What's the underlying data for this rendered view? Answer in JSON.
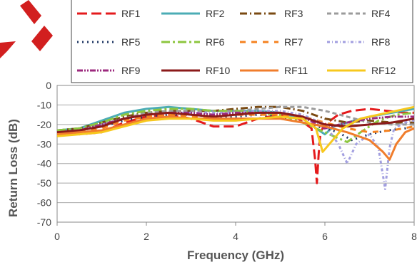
{
  "chart_data": {
    "type": "line",
    "title": "",
    "xlabel": "Frequency (GHz)",
    "ylabel": "Return Loss (dB)",
    "xlim": [
      0,
      8
    ],
    "ylim": [
      -70,
      0
    ],
    "xticks": [
      "0",
      "2",
      "4",
      "6",
      "8"
    ],
    "yticks": [
      "0",
      "-10",
      "-20",
      "-30",
      "-40",
      "-50",
      "-60",
      "-70"
    ],
    "grid": "horizontal",
    "legend_position": "top",
    "series": [
      {
        "name": "RF1",
        "color": "#e41a1c",
        "dash": "14,6",
        "width": 3,
        "x": [
          0,
          0.5,
          1.0,
          1.5,
          2.0,
          2.5,
          3.0,
          3.5,
          4.0,
          4.5,
          5.0,
          5.4,
          5.7,
          5.78,
          5.82,
          5.86,
          5.9,
          6.0,
          6.3,
          6.6,
          7.0,
          7.4,
          7.8,
          8.0
        ],
        "y": [
          -24,
          -25,
          -24,
          -19,
          -16,
          -15,
          -17,
          -21,
          -21,
          -17,
          -15,
          -17,
          -22,
          -38,
          -50,
          -35,
          -24,
          -20,
          -15,
          -13,
          -12,
          -13,
          -14,
          -14
        ]
      },
      {
        "name": "RF2",
        "color": "#4bacb5",
        "dash": "",
        "width": 3,
        "x": [
          0,
          0.5,
          1.0,
          1.5,
          2.0,
          2.5,
          3.0,
          3.5,
          4.0,
          4.5,
          5.0,
          5.5,
          5.8,
          6.0,
          6.2,
          6.5,
          7.0,
          7.5,
          8.0
        ],
        "y": [
          -23,
          -22,
          -18,
          -14,
          -12,
          -11,
          -12,
          -13,
          -13,
          -13,
          -14,
          -17,
          -22,
          -25,
          -21,
          -19,
          -16,
          -14,
          -12
        ]
      },
      {
        "name": "RF3",
        "color": "#7a4a12",
        "dash": "10,4,2,4",
        "width": 3,
        "x": [
          0,
          0.5,
          1.0,
          1.5,
          2.0,
          2.5,
          3.0,
          3.5,
          4.0,
          4.5,
          5.0,
          5.5,
          6.0,
          6.5,
          7.0,
          7.5,
          8.0
        ],
        "y": [
          -23,
          -22,
          -19,
          -16,
          -14,
          -13,
          -13,
          -13,
          -12,
          -11,
          -11,
          -13,
          -17,
          -19,
          -18,
          -19,
          -19
        ]
      },
      {
        "name": "RF4",
        "color": "#9b9b9b",
        "dash": "6,4",
        "width": 3,
        "x": [
          0,
          0.5,
          1.0,
          1.5,
          2.0,
          2.5,
          3.0,
          3.5,
          4.0,
          4.5,
          5.0,
          5.5,
          6.0,
          6.5,
          7.0,
          7.5,
          8.0
        ],
        "y": [
          -24,
          -23,
          -20,
          -17,
          -14,
          -13,
          -13,
          -13,
          -13,
          -12,
          -11,
          -11,
          -13,
          -16,
          -19,
          -20,
          -20
        ]
      },
      {
        "name": "RF5",
        "color": "#203864",
        "dash": "2,5",
        "width": 3,
        "x": [
          0,
          0.5,
          1.0,
          1.5,
          2.0,
          2.5,
          3.0,
          3.5,
          4.0,
          4.5,
          5.0,
          5.5,
          6.0,
          6.3,
          6.6,
          7.0,
          7.4,
          7.8,
          8.0
        ],
        "y": [
          -24,
          -23,
          -21,
          -18,
          -16,
          -15,
          -15,
          -16,
          -16,
          -15,
          -16,
          -19,
          -22,
          -24,
          -28,
          -25,
          -23,
          -22,
          -21
        ]
      },
      {
        "name": "RF6",
        "color": "#8dc63f",
        "dash": "12,4,3,4",
        "width": 3,
        "x": [
          0,
          0.5,
          1.0,
          1.5,
          2.0,
          2.5,
          3.0,
          3.5,
          4.0,
          4.5,
          5.0,
          5.5,
          6.0,
          6.3,
          6.5,
          6.8,
          7.2,
          7.6,
          8.0
        ],
        "y": [
          -23,
          -22,
          -19,
          -15,
          -13,
          -12,
          -12,
          -13,
          -13,
          -14,
          -15,
          -19,
          -24,
          -27,
          -29,
          -24,
          -18,
          -15,
          -14
        ]
      },
      {
        "name": "RF7",
        "color": "#f58220",
        "dash": "8,8",
        "width": 3,
        "x": [
          0,
          0.5,
          1.0,
          1.5,
          2.0,
          2.5,
          3.0,
          3.5,
          4.0,
          4.5,
          5.0,
          5.5,
          6.0,
          6.5,
          7.0,
          7.5,
          8.0
        ],
        "y": [
          -25,
          -24,
          -22,
          -18,
          -16,
          -15,
          -16,
          -16,
          -15,
          -15,
          -15,
          -16,
          -19,
          -22,
          -24,
          -23,
          -21
        ]
      },
      {
        "name": "RF8",
        "color": "#a29fe0",
        "dash": "4,3,1,3",
        "width": 3,
        "x": [
          0,
          0.5,
          1.0,
          1.5,
          2.0,
          2.5,
          3.0,
          3.5,
          4.0,
          4.5,
          5.0,
          5.5,
          6.0,
          6.3,
          6.5,
          6.7,
          7.0,
          7.2,
          7.35,
          7.45,
          7.55,
          7.8,
          8.0
        ],
        "y": [
          -24,
          -23,
          -20,
          -17,
          -15,
          -14,
          -14,
          -14,
          -14,
          -13,
          -13,
          -15,
          -20,
          -30,
          -40,
          -30,
          -25,
          -32,
          -53,
          -32,
          -22,
          -19,
          -18
        ]
      },
      {
        "name": "RF9",
        "color": "#9c2a7e",
        "dash": "8,2,2,2,2,2",
        "width": 3,
        "x": [
          0,
          0.5,
          1.0,
          1.5,
          2.0,
          2.5,
          3.0,
          3.5,
          4.0,
          4.5,
          5.0,
          5.5,
          6.0,
          6.5,
          7.0,
          7.5,
          8.0
        ],
        "y": [
          -24,
          -23,
          -20,
          -17,
          -15,
          -14,
          -14,
          -15,
          -14,
          -14,
          -14,
          -16,
          -22,
          -19,
          -17,
          -16,
          -16
        ]
      },
      {
        "name": "RF10",
        "color": "#8b1a1a",
        "dash": "",
        "width": 3,
        "x": [
          0,
          0.5,
          1.0,
          1.5,
          2.0,
          2.5,
          3.0,
          3.5,
          4.0,
          4.5,
          5.0,
          5.5,
          6.0,
          6.5,
          7.0,
          7.5,
          8.0
        ],
        "y": [
          -24,
          -23,
          -21,
          -17,
          -15,
          -14,
          -15,
          -16,
          -15,
          -14,
          -14,
          -16,
          -20,
          -21,
          -20,
          -19,
          -17
        ]
      },
      {
        "name": "RF11",
        "color": "#f07d2c",
        "dash": "",
        "width": 3,
        "x": [
          0,
          0.5,
          1.0,
          1.5,
          2.0,
          2.5,
          3.0,
          3.5,
          4.0,
          4.5,
          5.0,
          5.5,
          6.0,
          6.5,
          7.0,
          7.3,
          7.45,
          7.6,
          7.8,
          8.0
        ],
        "y": [
          -25,
          -24,
          -23,
          -20,
          -17,
          -16,
          -17,
          -17,
          -17,
          -17,
          -17,
          -19,
          -21,
          -24,
          -28,
          -34,
          -38,
          -30,
          -24,
          -22
        ]
      },
      {
        "name": "RF12",
        "color": "#f7c81e",
        "dash": "",
        "width": 3,
        "x": [
          0,
          0.5,
          1.0,
          1.5,
          2.0,
          2.5,
          3.0,
          3.5,
          4.0,
          4.5,
          5.0,
          5.5,
          5.8,
          5.95,
          6.1,
          6.4,
          6.8,
          7.2,
          7.6,
          8.0
        ],
        "y": [
          -26,
          -25,
          -24,
          -21,
          -18,
          -17,
          -17,
          -18,
          -18,
          -17,
          -16,
          -17,
          -22,
          -34,
          -30,
          -22,
          -17,
          -15,
          -13,
          -11
        ]
      }
    ]
  }
}
